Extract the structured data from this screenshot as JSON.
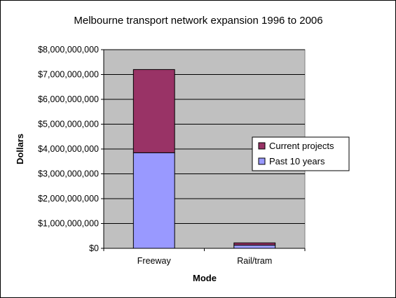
{
  "chart_data": {
    "type": "bar",
    "stacked": true,
    "title": "Melbourne transport network expansion 1996 to 2006",
    "xlabel": "Mode",
    "ylabel": "Dollars",
    "categories": [
      "Freeway",
      "Rail/tram"
    ],
    "series": [
      {
        "name": "Past 10 years",
        "values": [
          3850000000,
          130000000
        ],
        "color": "#9999ff"
      },
      {
        "name": "Current projects",
        "values": [
          3350000000,
          90000000
        ],
        "color": "#993366"
      }
    ],
    "ylim": [
      0,
      8000000000
    ],
    "yticks": [
      0,
      1000000000,
      2000000000,
      3000000000,
      4000000000,
      5000000000,
      6000000000,
      7000000000,
      8000000000
    ],
    "ytick_labels": [
      "$0",
      "$1,000,000,000",
      "$2,000,000,000",
      "$3,000,000,000",
      "$4,000,000,000",
      "$5,000,000,000",
      "$6,000,000,000",
      "$7,000,000,000",
      "$8,000,000,000"
    ],
    "grid": true,
    "legend_position": "right",
    "legend_order": [
      "Current projects",
      "Past 10 years"
    ],
    "plot_background": "#c0c0c0"
  }
}
